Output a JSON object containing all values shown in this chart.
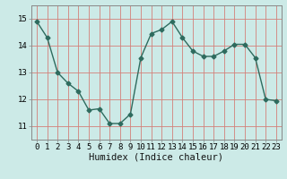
{
  "x": [
    0,
    1,
    2,
    3,
    4,
    5,
    6,
    7,
    8,
    9,
    10,
    11,
    12,
    13,
    14,
    15,
    16,
    17,
    18,
    19,
    20,
    21,
    22,
    23
  ],
  "y": [
    14.9,
    14.3,
    13.0,
    12.6,
    12.3,
    11.6,
    11.65,
    11.1,
    11.1,
    11.45,
    13.55,
    14.45,
    14.6,
    14.9,
    14.3,
    13.8,
    13.6,
    13.6,
    13.8,
    14.05,
    14.05,
    13.55,
    12.0,
    11.95
  ],
  "line_color": "#2e6b5e",
  "marker": "D",
  "markersize": 2.5,
  "linewidth": 1.0,
  "bg_color": "#cceae7",
  "xlabel": "Humidex (Indice chaleur)",
  "ylim": [
    10.5,
    15.5
  ],
  "xlim": [
    -0.5,
    23.5
  ],
  "yticks": [
    11,
    12,
    13,
    14,
    15
  ],
  "xticks": [
    0,
    1,
    2,
    3,
    4,
    5,
    6,
    7,
    8,
    9,
    10,
    11,
    12,
    13,
    14,
    15,
    16,
    17,
    18,
    19,
    20,
    21,
    22,
    23
  ],
  "tick_fontsize": 6.5,
  "xlabel_fontsize": 7.5,
  "grid_color": "#d4807a",
  "spine_color": "#888888"
}
